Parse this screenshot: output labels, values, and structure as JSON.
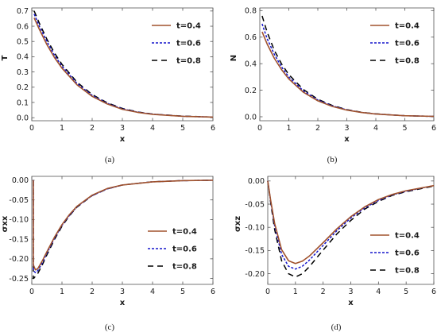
{
  "chart_data": [
    {
      "type": "line",
      "caption": "(a)",
      "xlabel": "x",
      "ylabel": "T",
      "xlim": [
        0,
        6
      ],
      "ylim": [
        -0.02,
        0.72
      ],
      "xticks": [
        0,
        1,
        2,
        3,
        4,
        5,
        6
      ],
      "yticks": [
        0.0,
        0.1,
        0.2,
        0.3,
        0.4,
        0.5,
        0.6,
        0.7
      ],
      "ytick_labels": [
        "0.0",
        "0.1",
        "0.2",
        "0.3",
        "0.4",
        "0.5",
        "0.6",
        "0.7"
      ],
      "grid": false,
      "legend": "top-right",
      "series": [
        {
          "name": "t=0.4",
          "color": "#a0522d",
          "dash": "solid",
          "x": [
            0.08,
            0.25,
            0.5,
            0.75,
            1,
            1.5,
            2,
            2.5,
            3,
            3.5,
            4,
            5,
            6
          ],
          "y": [
            0.655,
            0.58,
            0.48,
            0.395,
            0.325,
            0.215,
            0.14,
            0.09,
            0.055,
            0.035,
            0.022,
            0.009,
            0.004
          ]
        },
        {
          "name": "t=0.6",
          "color": "#1515cc",
          "dash": "dotted",
          "x": [
            0.08,
            0.25,
            0.5,
            0.75,
            1,
            1.5,
            2,
            2.5,
            3,
            3.5,
            4,
            5,
            6
          ],
          "y": [
            0.68,
            0.6,
            0.5,
            0.41,
            0.338,
            0.224,
            0.146,
            0.094,
            0.058,
            0.037,
            0.023,
            0.009,
            0.004
          ]
        },
        {
          "name": "t=0.8",
          "color": "#000000",
          "dash": "dashed",
          "x": [
            0.08,
            0.25,
            0.5,
            0.75,
            1,
            1.5,
            2,
            2.5,
            3,
            3.5,
            4,
            5,
            6
          ],
          "y": [
            0.7,
            0.62,
            0.515,
            0.425,
            0.35,
            0.232,
            0.152,
            0.098,
            0.061,
            0.038,
            0.024,
            0.01,
            0.004
          ]
        }
      ]
    },
    {
      "type": "line",
      "caption": "(b)",
      "xlabel": "x",
      "ylabel": "N",
      "xlim": [
        0,
        6
      ],
      "ylim": [
        -0.03,
        0.82
      ],
      "xticks": [
        0,
        1,
        2,
        3,
        4,
        5,
        6
      ],
      "yticks": [
        0.0,
        0.2,
        0.4,
        0.6,
        0.8
      ],
      "ytick_labels": [
        "0.0",
        "0.2",
        "0.4",
        "0.6",
        "0.8"
      ],
      "grid": false,
      "legend": "top-right",
      "series": [
        {
          "name": "t=0.4",
          "color": "#a0522d",
          "dash": "solid",
          "x": [
            0.08,
            0.25,
            0.5,
            0.75,
            1,
            1.5,
            2,
            2.5,
            3,
            3.5,
            4,
            5,
            6
          ],
          "y": [
            0.64,
            0.55,
            0.44,
            0.355,
            0.285,
            0.185,
            0.12,
            0.078,
            0.05,
            0.032,
            0.02,
            0.008,
            0.003
          ]
        },
        {
          "name": "t=0.6",
          "color": "#1515cc",
          "dash": "dotted",
          "x": [
            0.08,
            0.25,
            0.5,
            0.75,
            1,
            1.5,
            2,
            2.5,
            3,
            3.5,
            4,
            5,
            6
          ],
          "y": [
            0.7,
            0.59,
            0.47,
            0.375,
            0.3,
            0.195,
            0.126,
            0.082,
            0.052,
            0.033,
            0.021,
            0.008,
            0.003
          ]
        },
        {
          "name": "t=0.8",
          "color": "#000000",
          "dash": "dashed",
          "x": [
            0.08,
            0.25,
            0.5,
            0.75,
            1,
            1.5,
            2,
            2.5,
            3,
            3.5,
            4,
            5,
            6
          ],
          "y": [
            0.76,
            0.64,
            0.5,
            0.398,
            0.318,
            0.205,
            0.132,
            0.085,
            0.054,
            0.034,
            0.022,
            0.008,
            0.003
          ]
        }
      ]
    },
    {
      "type": "line",
      "caption": "(c)",
      "xlabel": "x",
      "ylabel": "σxx",
      "xlim": [
        0,
        6
      ],
      "ylim": [
        -0.265,
        0.01
      ],
      "xticks": [
        0,
        1,
        2,
        3,
        4,
        5,
        6
      ],
      "yticks": [
        0.0,
        -0.05,
        -0.1,
        -0.15,
        -0.2,
        -0.25
      ],
      "ytick_labels": [
        "0.00",
        "-0.05",
        "-0.10",
        "-0.15",
        "-0.20",
        "-0.25"
      ],
      "grid": false,
      "legend": "right",
      "series": [
        {
          "name": "t=0.4",
          "color": "#a0522d",
          "dash": "solid",
          "x": [
            0.05,
            0.05,
            0.12,
            0.2,
            0.35,
            0.5,
            0.75,
            1,
            1.25,
            1.5,
            2,
            2.5,
            3,
            4,
            5,
            6
          ],
          "y": [
            0,
            -0.215,
            -0.228,
            -0.225,
            -0.205,
            -0.182,
            -0.145,
            -0.113,
            -0.087,
            -0.066,
            -0.038,
            -0.021,
            -0.012,
            -0.004,
            -0.001,
            0
          ]
        },
        {
          "name": "t=0.6",
          "color": "#1515cc",
          "dash": "dotted",
          "x": [
            0.05,
            0.05,
            0.12,
            0.2,
            0.35,
            0.5,
            0.75,
            1,
            1.25,
            1.5,
            2,
            2.5,
            3,
            4,
            5,
            6
          ],
          "y": [
            0,
            -0.23,
            -0.235,
            -0.23,
            -0.21,
            -0.186,
            -0.148,
            -0.115,
            -0.089,
            -0.067,
            -0.039,
            -0.022,
            -0.012,
            -0.004,
            -0.001,
            0
          ]
        },
        {
          "name": "t=0.8",
          "color": "#000000",
          "dash": "dashed",
          "x": [
            0.05,
            0.05,
            0.12,
            0.2,
            0.35,
            0.5,
            0.75,
            1,
            1.25,
            1.5,
            2,
            2.5,
            3,
            4,
            5,
            6
          ],
          "y": [
            0,
            -0.25,
            -0.245,
            -0.237,
            -0.215,
            -0.19,
            -0.151,
            -0.117,
            -0.09,
            -0.068,
            -0.039,
            -0.022,
            -0.012,
            -0.004,
            -0.001,
            0
          ]
        }
      ]
    },
    {
      "type": "line",
      "caption": "(d)",
      "xlabel": "x",
      "ylabel": "σxz",
      "xlim": [
        0,
        6
      ],
      "ylim": [
        -0.223,
        0.01
      ],
      "xticks": [
        0,
        1,
        2,
        3,
        4,
        5,
        6
      ],
      "yticks": [
        0.0,
        -0.05,
        -0.1,
        -0.15,
        -0.2
      ],
      "ytick_labels": [
        "0.00",
        "-0.05",
        "-0.10",
        "-0.15",
        "-0.20"
      ],
      "grid": false,
      "legend": "right",
      "series": [
        {
          "name": "t=0.4",
          "color": "#a0522d",
          "dash": "solid",
          "x": [
            0,
            0.1,
            0.25,
            0.5,
            0.75,
            1,
            1.25,
            1.5,
            2,
            2.5,
            3,
            3.5,
            4,
            4.5,
            5,
            6
          ],
          "y": [
            0,
            -0.04,
            -0.092,
            -0.148,
            -0.172,
            -0.178,
            -0.173,
            -0.162,
            -0.133,
            -0.103,
            -0.077,
            -0.056,
            -0.04,
            -0.029,
            -0.021,
            -0.01
          ]
        },
        {
          "name": "t=0.6",
          "color": "#1515cc",
          "dash": "dotted",
          "x": [
            0,
            0.1,
            0.25,
            0.5,
            0.75,
            1,
            1.25,
            1.5,
            2,
            2.5,
            3,
            3.5,
            4,
            4.5,
            5,
            6
          ],
          "y": [
            0,
            -0.042,
            -0.097,
            -0.158,
            -0.184,
            -0.19,
            -0.184,
            -0.171,
            -0.139,
            -0.107,
            -0.08,
            -0.058,
            -0.042,
            -0.03,
            -0.022,
            -0.01
          ]
        },
        {
          "name": "t=0.8",
          "color": "#000000",
          "dash": "dashed",
          "x": [
            0,
            0.1,
            0.25,
            0.5,
            0.75,
            1,
            1.25,
            1.5,
            2,
            2.5,
            3,
            3.5,
            4,
            4.5,
            5,
            6
          ],
          "y": [
            0,
            -0.045,
            -0.105,
            -0.172,
            -0.2,
            -0.207,
            -0.2,
            -0.185,
            -0.149,
            -0.114,
            -0.085,
            -0.061,
            -0.044,
            -0.031,
            -0.023,
            -0.011
          ]
        }
      ]
    }
  ]
}
